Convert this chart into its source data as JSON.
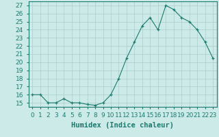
{
  "x": [
    0,
    1,
    2,
    3,
    4,
    5,
    6,
    7,
    8,
    9,
    10,
    11,
    12,
    13,
    14,
    15,
    16,
    17,
    18,
    19,
    20,
    21,
    22,
    23
  ],
  "y": [
    16,
    16,
    15,
    15,
    15.5,
    15,
    15,
    14.8,
    14.7,
    15,
    16,
    18,
    20.5,
    22.5,
    24.5,
    25.5,
    24,
    27,
    26.5,
    25.5,
    25,
    24,
    22.5,
    20.5
  ],
  "line_color": "#1a7a6e",
  "marker_color": "#1a7a6e",
  "bg_color": "#cceae7",
  "grid_color": "#aacccc",
  "xlabel": "Humidex (Indice chaleur)",
  "ylim": [
    14.5,
    27.5
  ],
  "xlim": [
    -0.5,
    23.5
  ],
  "yticks": [
    15,
    16,
    17,
    18,
    19,
    20,
    21,
    22,
    23,
    24,
    25,
    26,
    27
  ],
  "xtick_labels": [
    "0",
    "1",
    "2",
    "3",
    "4",
    "5",
    "6",
    "7",
    "8",
    "9",
    "10",
    "11",
    "12",
    "13",
    "14",
    "15",
    "16",
    "17",
    "18",
    "19",
    "20",
    "21",
    "22",
    "23"
  ],
  "xlabel_fontsize": 7.5,
  "tick_fontsize": 6.5
}
